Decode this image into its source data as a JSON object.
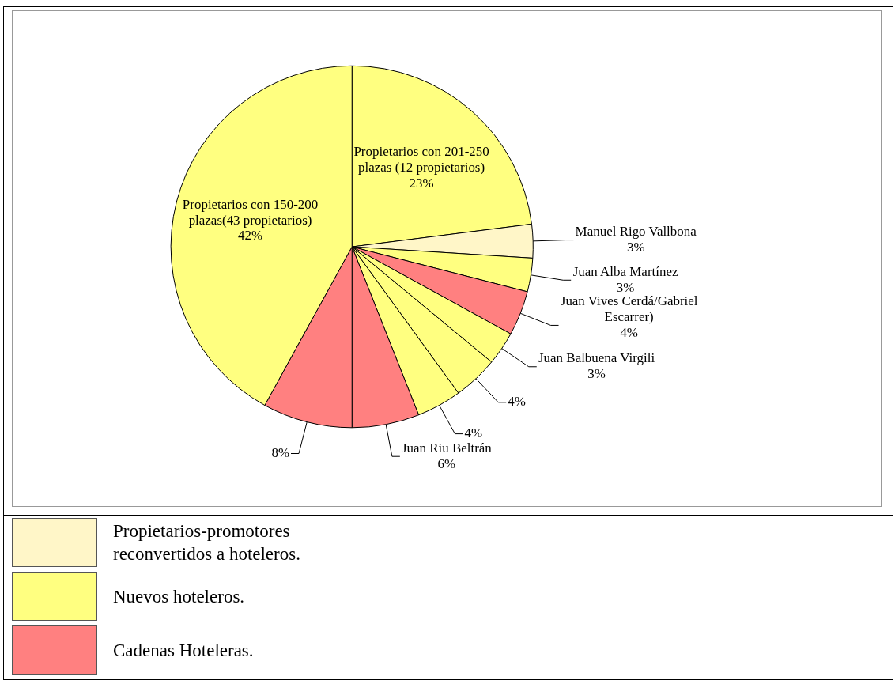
{
  "chart_data": {
    "type": "pie",
    "categories": [
      "Propietarios con 201-250 plazas (12 propietarios)",
      "Manuel Rigo Vallbona",
      "Juan Alba Martínez",
      "Juan Vives Cerdá/Gabriel Escarrer)",
      "Juan Balbuena Virgili",
      null,
      null,
      "Juan Riu Beltrán",
      null,
      "Propietarios con 150-200 plazas(43 propietarios)"
    ],
    "values": [
      23,
      3,
      3,
      4,
      3,
      4,
      4,
      6,
      8,
      42
    ],
    "value_labels": [
      "23%",
      "3%",
      "3%",
      "4%",
      "3%",
      "4%",
      "4%",
      "6%",
      "8%",
      "42%"
    ],
    "colors": [
      "#ffff80",
      "#fff6c8",
      "#ffff80",
      "#ff8080",
      "#ffff80",
      "#ffff80",
      "#ffff80",
      "#ff8080",
      "#ff8080",
      "#ffff80"
    ],
    "annotations": [
      "Propietarios-promotores reconvertidos a hoteleros.",
      "Nuevos hoteleros.",
      "Cadenas Hoteleras."
    ]
  }
}
